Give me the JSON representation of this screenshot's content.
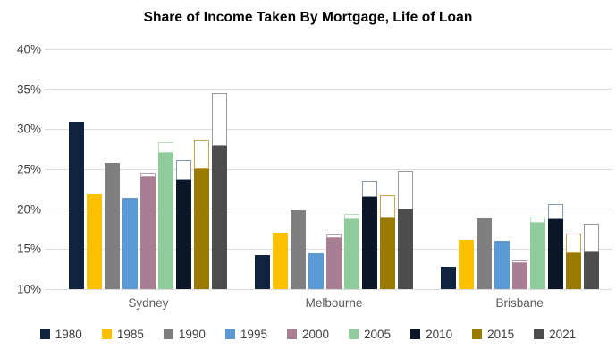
{
  "chart_data": {
    "type": "bar",
    "title": "Share of Income Taken By Mortgage, Life of Loan",
    "categories": [
      "Sydney",
      "Melbourne",
      "Brisbane"
    ],
    "xlabel": "",
    "ylabel": "",
    "y_axis": {
      "min": 10,
      "max": 40,
      "step": 5,
      "unit": "%"
    },
    "y_tick_labels": [
      "40%",
      "35%",
      "30%",
      "25%",
      "20%",
      "15%",
      "10%"
    ],
    "grid": true,
    "legend_position": "bottom",
    "colors": {
      "gridline": "#dcdcdc",
      "axis_text": "#3f3f3f",
      "category_text": "#595959",
      "legend_text": "#404040",
      "title_text": "#000000",
      "background": "#ffffff"
    },
    "series": [
      {
        "name": "1980",
        "color": "#10233F",
        "outline_color": null,
        "solid": [
          30.9,
          14.3,
          12.8
        ],
        "total": [
          30.9,
          14.3,
          12.8
        ]
      },
      {
        "name": "1985",
        "color": "#FFC000",
        "outline_color": null,
        "solid": [
          21.9,
          17.1,
          16.2
        ],
        "total": [
          21.9,
          17.1,
          16.2
        ]
      },
      {
        "name": "1990",
        "color": "#7F7F7F",
        "outline_color": null,
        "solid": [
          25.8,
          19.8,
          18.9
        ],
        "total": [
          25.8,
          19.8,
          18.9
        ]
      },
      {
        "name": "1995",
        "color": "#5B9BD5",
        "outline_color": null,
        "solid": [
          21.4,
          14.5,
          16.1
        ],
        "total": [
          21.4,
          14.5,
          16.1
        ]
      },
      {
        "name": "2000",
        "color": "#A87E93",
        "outline_color": "#C29DAD",
        "solid": [
          24.0,
          16.4,
          13.2
        ],
        "total": [
          24.6,
          16.8,
          13.6
        ]
      },
      {
        "name": "2005",
        "color": "#8FCB9B",
        "outline_color": "#B5DEBB",
        "solid": [
          27.0,
          18.7,
          18.3
        ],
        "total": [
          28.4,
          19.4,
          19.1
        ]
      },
      {
        "name": "2010",
        "color": "#0B1728",
        "outline_color": "#8497B0",
        "solid": [
          23.7,
          21.5,
          18.7
        ],
        "total": [
          26.1,
          23.6,
          20.6
        ]
      },
      {
        "name": "2015",
        "color": "#9B7A01",
        "outline_color": "#CBA54A",
        "solid": [
          25.0,
          18.8,
          14.5
        ],
        "total": [
          28.7,
          21.7,
          16.9
        ]
      },
      {
        "name": "2021",
        "color": "#4D4D4D",
        "outline_color": "#999999",
        "solid": [
          27.9,
          20.0,
          14.6
        ],
        "total": [
          34.5,
          24.8,
          18.2
        ]
      }
    ]
  }
}
